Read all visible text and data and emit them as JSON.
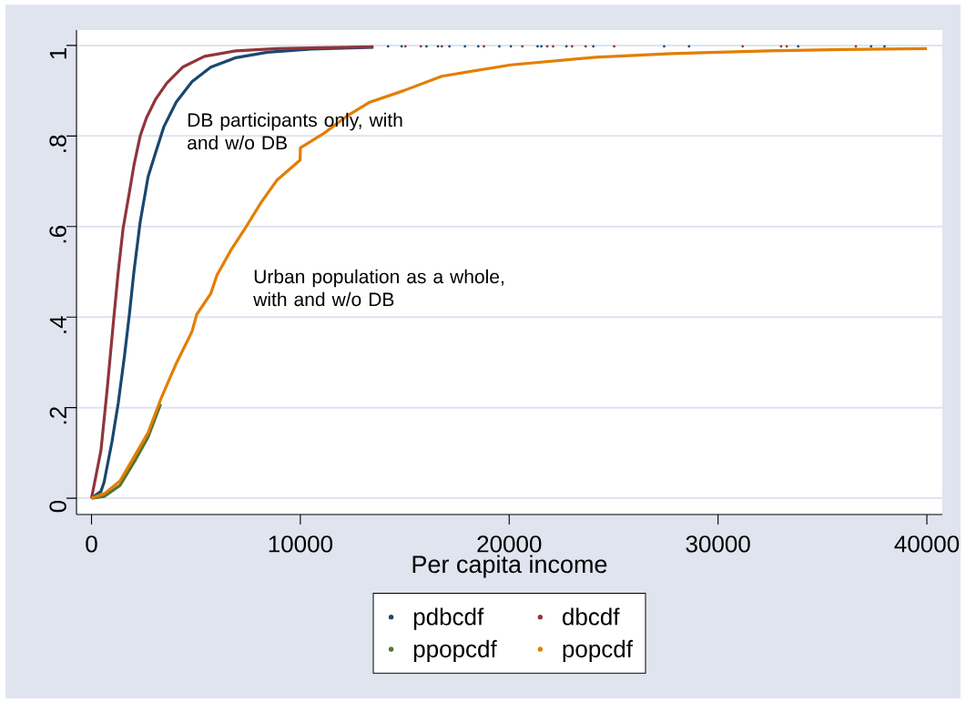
{
  "chart_data": {
    "type": "line",
    "xlabel": "Per capita income",
    "annotations": [
      "DB participants only, with and w/o DB",
      "Urban population as a whole, with and w/o DB"
    ],
    "xlim": [
      -720,
      40740
    ],
    "ylim": [
      -0.036,
      1.034
    ],
    "xticks": [
      0,
      10000,
      20000,
      30000,
      40000
    ],
    "yticks": [
      0,
      {
        "value": 0.2,
        "label": ".2"
      },
      {
        "value": 0.4,
        "label": ".4"
      },
      {
        "value": 0.6,
        "label": ".6"
      },
      {
        "value": 0.8,
        "label": ".8"
      },
      1
    ],
    "grid": "y",
    "legend": "bottom",
    "line_style": "solid",
    "series": [
      {
        "name": "pdbcdf",
        "color": "#1a476f",
        "x": [
          0,
          450,
          600,
          980,
          1280,
          1580,
          1810,
          2030,
          2330,
          2710,
          3080,
          3460,
          4060,
          4810,
          5710,
          6910,
          8420,
          10520,
          13500
        ],
        "values": [
          0,
          0.015,
          0.035,
          0.125,
          0.21,
          0.315,
          0.405,
          0.5,
          0.61,
          0.71,
          0.765,
          0.82,
          0.875,
          0.92,
          0.952,
          0.973,
          0.985,
          0.992,
          0.996
        ]
      },
      {
        "name": "dbcdf",
        "color": "#90353b",
        "x": [
          0,
          450,
          760,
          1030,
          1280,
          1510,
          1810,
          2030,
          2330,
          2630,
          3080,
          3610,
          4360,
          5410,
          6910,
          8870,
          11120,
          13500
        ],
        "values": [
          0,
          0.105,
          0.245,
          0.38,
          0.5,
          0.595,
          0.675,
          0.735,
          0.8,
          0.84,
          0.882,
          0.917,
          0.952,
          0.976,
          0.988,
          0.993,
          0.995,
          0.997
        ]
      },
      {
        "name": "ppopcdf",
        "color": "#55752f",
        "x": [
          0,
          610,
          1360,
          2110,
          2710,
          3310
        ],
        "values": [
          0,
          0.004,
          0.028,
          0.085,
          0.135,
          0.208
        ]
      },
      {
        "name": "popcdf",
        "color": "#e37e00",
        "x": [
          0,
          610,
          1360,
          2110,
          2710,
          3310,
          4060,
          4810,
          5040,
          5710,
          6010,
          6690,
          7370,
          8120,
          8870,
          9990,
          10000,
          11130,
          12200,
          13290,
          14940,
          16770,
          20080,
          24120,
          27780,
          32380,
          36000,
          40000
        ],
        "values": [
          0,
          0.01,
          0.038,
          0.097,
          0.145,
          0.218,
          0.298,
          0.368,
          0.406,
          0.452,
          0.493,
          0.549,
          0.597,
          0.653,
          0.702,
          0.747,
          0.774,
          0.806,
          0.843,
          0.874,
          0.9,
          0.932,
          0.957,
          0.974,
          0.982,
          0.988,
          0.991,
          0.993
        ]
      },
      {
        "type": "scatter",
        "marker": "circle",
        "color": "#1a476f",
        "x": [
          14200,
          14850,
          16040,
          16590,
          17140,
          17880,
          18520,
          19530,
          20080,
          21360,
          21540,
          22740,
          24030,
          27420,
          28610,
          33840,
          37330,
          37970
        ],
        "values": [
          0.998,
          0.998,
          0.998,
          0.998,
          0.998,
          0.998,
          0.998,
          0.998,
          0.998,
          0.998,
          0.998,
          0.998,
          0.998,
          0.998,
          0.998,
          0.998,
          0.998,
          0.998
        ]
      },
      {
        "type": "scatter",
        "marker": "circle",
        "color": "#90353b",
        "x": [
          15030,
          15770,
          16770,
          18790,
          20630,
          21820,
          22100,
          23010,
          23660,
          25030,
          31180,
          33020,
          33290,
          36600
        ],
        "values": [
          0.998,
          0.998,
          0.998,
          0.998,
          0.998,
          0.998,
          0.998,
          0.998,
          0.998,
          0.998,
          0.998,
          0.998,
          0.998,
          0.998
        ]
      }
    ]
  }
}
